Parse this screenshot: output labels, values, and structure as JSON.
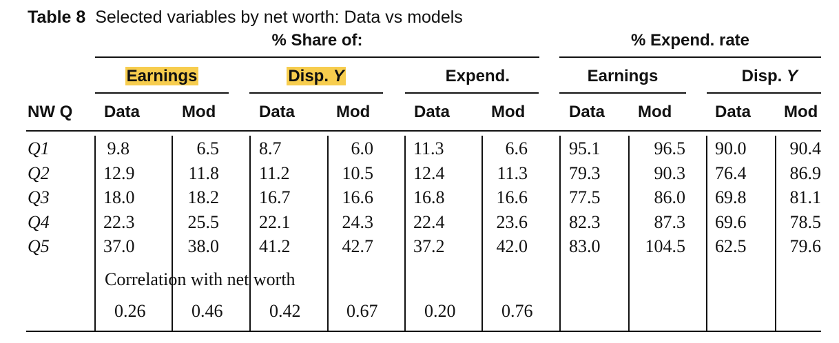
{
  "title": {
    "label": "Table 8",
    "text": "Selected variables by net worth: Data vs models"
  },
  "groups": {
    "share": "% Share of:",
    "expend_rate": "% Expend. rate"
  },
  "subgroups": [
    "Earnings",
    "Disp. Y",
    "Expend.",
    "Earnings",
    "Disp. Y"
  ],
  "subgroup_highlight_color": "#f7cd4e",
  "row_header": "NW Q",
  "col_headers": [
    "Data",
    "Mod",
    "Data",
    "Mod",
    "Data",
    "Mod",
    "Data",
    "Mod",
    "Data",
    "Mod"
  ],
  "rows": [
    {
      "label": "Q1",
      "values": [
        "9.8",
        "6.5",
        "8.7",
        "6.0",
        "11.3",
        "6.6",
        "95.1",
        "96.5",
        "90.0",
        "90.4"
      ]
    },
    {
      "label": "Q2",
      "values": [
        "12.9",
        "11.8",
        "11.2",
        "10.5",
        "12.4",
        "11.3",
        "79.3",
        "90.3",
        "76.4",
        "86.9"
      ]
    },
    {
      "label": "Q3",
      "values": [
        "18.0",
        "18.2",
        "16.7",
        "16.6",
        "16.8",
        "16.6",
        "77.5",
        "86.0",
        "69.8",
        "81.1"
      ]
    },
    {
      "label": "Q4",
      "values": [
        "22.3",
        "25.5",
        "22.1",
        "24.3",
        "22.4",
        "23.6",
        "82.3",
        "87.3",
        "69.6",
        "78.5"
      ]
    },
    {
      "label": "Q5",
      "values": [
        "37.0",
        "38.0",
        "41.2",
        "42.7",
        "37.2",
        "42.0",
        "83.0",
        "104.5",
        "62.5",
        "79.6"
      ]
    }
  ],
  "correlation": {
    "label": "Correlation with net worth",
    "values": [
      "0.26",
      "0.46",
      "0.42",
      "0.67",
      "0.20",
      "0.76"
    ]
  }
}
